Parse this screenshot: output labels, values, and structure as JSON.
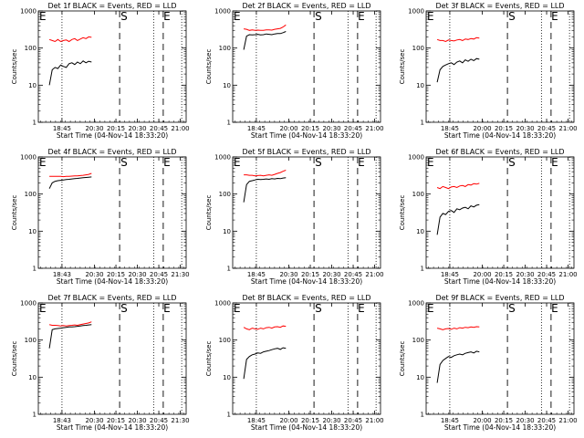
{
  "chart_data": [
    {
      "type": "line",
      "title": "Det 1f BLACK = Events, RED = LLD",
      "xlabel": "Start Time (04-Nov-14 18:33:20)",
      "ylabel": "Counts/sec",
      "yscale": "log",
      "ylim": [
        1,
        1000
      ],
      "yticks": [
        "1",
        "10",
        "100",
        "1000"
      ],
      "xticks": [
        "18:45",
        "20:30",
        "20:15",
        "20:30",
        "20:45",
        "21:00"
      ],
      "markers": [
        "E",
        "S",
        "E"
      ],
      "series": [
        {
          "color": "#ff0000",
          "values": [
            170,
            160,
            150,
            170,
            150,
            160,
            165,
            150,
            170,
            180,
            160,
            175,
            190,
            180,
            200,
            195
          ]
        },
        {
          "color": "#000000",
          "values": [
            10,
            26,
            30,
            28,
            35,
            32,
            30,
            38,
            40,
            36,
            42,
            38,
            45,
            40,
            44,
            42
          ]
        }
      ]
    },
    {
      "type": "line",
      "title": "Det 2f BLACK = Events, RED = LLD",
      "xlabel": "Start Time (04-Nov-14 18:33:20)",
      "ylabel": "Counts/sec",
      "yscale": "log",
      "ylim": [
        1,
        1000
      ],
      "yticks": [
        "1",
        "10",
        "100",
        "1000"
      ],
      "xticks": [
        "18:45",
        "20:00",
        "20:15",
        "20:30",
        "20:45",
        "21:00"
      ],
      "markers": [
        "E",
        "S",
        "E"
      ],
      "series": [
        {
          "color": "#ff0000",
          "values": [
            330,
            320,
            300,
            310,
            300,
            305,
            300,
            300,
            310,
            310,
            305,
            320,
            330,
            340,
            370,
            420
          ]
        },
        {
          "color": "#000000",
          "values": [
            90,
            210,
            230,
            225,
            230,
            235,
            225,
            230,
            240,
            235,
            230,
            240,
            245,
            245,
            260,
            280
          ]
        }
      ]
    },
    {
      "type": "line",
      "title": "Det 3f BLACK = Events, RED = LLD",
      "xlabel": "Start Time (04-Nov-14 18:33:20)",
      "ylabel": "Counts/sec",
      "yscale": "log",
      "ylim": [
        1,
        1000
      ],
      "yticks": [
        "1",
        "10",
        "100",
        "1000"
      ],
      "xticks": [
        "18:45",
        "20:00",
        "20:15",
        "20:30",
        "20:45",
        "21:00"
      ],
      "markers": [
        "E",
        "S",
        "E"
      ],
      "series": [
        {
          "color": "#ff0000",
          "values": [
            170,
            160,
            160,
            150,
            165,
            160,
            155,
            165,
            170,
            160,
            175,
            170,
            180,
            175,
            190,
            185
          ]
        },
        {
          "color": "#000000",
          "values": [
            12,
            26,
            32,
            35,
            38,
            40,
            36,
            42,
            45,
            40,
            48,
            44,
            50,
            46,
            52,
            50
          ]
        }
      ]
    },
    {
      "type": "line",
      "title": "Det 4f BLACK = Events, RED = LLD",
      "xlabel": "Start Time (04-Nov-14 18:33:20)",
      "ylabel": "Counts/sec",
      "yscale": "log",
      "ylim": [
        1,
        1000
      ],
      "yticks": [
        "1",
        "10",
        "100",
        "1000"
      ],
      "xticks": [
        "18:43",
        "20:30",
        "20:15",
        "20:30",
        "20:45",
        "21:30"
      ],
      "markers": [
        "E",
        "S",
        "E"
      ],
      "series": [
        {
          "color": "#ff0000",
          "values": [
            300,
            300,
            300,
            300,
            300,
            295,
            300,
            300,
            305,
            310,
            310,
            315,
            320,
            330,
            340,
            360
          ]
        },
        {
          "color": "#000000",
          "values": [
            140,
            200,
            220,
            230,
            235,
            240,
            245,
            250,
            255,
            260,
            265,
            270,
            275,
            280,
            285,
            290
          ]
        }
      ]
    },
    {
      "type": "line",
      "title": "Det 5f BLACK = Events, RED = LLD",
      "xlabel": "Start Time (04-Nov-14 18:33:20)",
      "ylabel": "Counts/sec",
      "yscale": "log",
      "ylim": [
        1,
        1000
      ],
      "yticks": [
        "1",
        "10",
        "100",
        "1000"
      ],
      "xticks": [
        "18:45",
        "20:30",
        "20:15",
        "20:30",
        "20:45",
        "21:00"
      ],
      "markers": [
        "E",
        "S",
        "E"
      ],
      "series": [
        {
          "color": "#ff0000",
          "values": [
            330,
            330,
            320,
            320,
            310,
            315,
            320,
            310,
            320,
            330,
            320,
            340,
            360,
            380,
            410,
            440
          ]
        },
        {
          "color": "#000000",
          "values": [
            60,
            180,
            220,
            230,
            240,
            250,
            245,
            250,
            255,
            250,
            260,
            255,
            265,
            260,
            270,
            275
          ]
        }
      ]
    },
    {
      "type": "line",
      "title": "Det 6f BLACK = Events, RED = LLD",
      "xlabel": "Start Time (04-Nov-14 18:33:20)",
      "ylabel": "Counts/sec",
      "yscale": "log",
      "ylim": [
        1,
        1000
      ],
      "yticks": [
        "1",
        "10",
        "100",
        "1000"
      ],
      "xticks": [
        "18:45",
        "20:00",
        "20:15",
        "20:30",
        "20:45",
        "21:00"
      ],
      "markers": [
        "E",
        "S",
        "E"
      ],
      "series": [
        {
          "color": "#ff0000",
          "values": [
            150,
            140,
            160,
            150,
            140,
            155,
            160,
            150,
            165,
            170,
            160,
            180,
            175,
            190,
            185,
            195
          ]
        },
        {
          "color": "#000000",
          "values": [
            8,
            24,
            30,
            28,
            34,
            36,
            32,
            40,
            38,
            42,
            44,
            40,
            48,
            45,
            50,
            52
          ]
        }
      ]
    },
    {
      "type": "line",
      "title": "Det 7f BLACK = Events, RED = LLD",
      "xlabel": "Start Time (04-Nov-14 18:33:20)",
      "ylabel": "Counts/sec",
      "yscale": "log",
      "ylim": [
        1,
        1000
      ],
      "yticks": [
        "1",
        "10",
        "100",
        "1000"
      ],
      "xticks": [
        "18:43",
        "20:30",
        "20:15",
        "20:30",
        "20:45",
        "21:30"
      ],
      "markers": [
        "E",
        "S",
        "E"
      ],
      "series": [
        {
          "color": "#ff0000",
          "values": [
            260,
            250,
            250,
            245,
            240,
            245,
            240,
            245,
            250,
            255,
            250,
            260,
            270,
            280,
            290,
            310
          ]
        },
        {
          "color": "#000000",
          "values": [
            60,
            190,
            200,
            205,
            210,
            215,
            220,
            225,
            225,
            230,
            235,
            240,
            245,
            250,
            255,
            260
          ]
        }
      ]
    },
    {
      "type": "line",
      "title": "Det 8f BLACK = Events, RED = LLD",
      "xlabel": "Start Time (04-Nov-14 18:33:20)",
      "ylabel": "Counts/sec",
      "yscale": "log",
      "ylim": [
        1,
        1000
      ],
      "yticks": [
        "1",
        "10",
        "100",
        "1000"
      ],
      "xticks": [
        "18:45",
        "20:00",
        "20:15",
        "20:30",
        "20:45",
        "21:00"
      ],
      "markers": [
        "E",
        "S",
        "E"
      ],
      "series": [
        {
          "color": "#ff0000",
          "values": [
            220,
            200,
            190,
            210,
            200,
            195,
            210,
            200,
            215,
            220,
            210,
            225,
            230,
            220,
            240,
            235
          ]
        },
        {
          "color": "#000000",
          "values": [
            9,
            30,
            36,
            40,
            42,
            45,
            44,
            48,
            50,
            52,
            55,
            58,
            60,
            56,
            62,
            60
          ]
        }
      ]
    },
    {
      "type": "line",
      "title": "Det 9f BLACK = Events, RED = LLD",
      "xlabel": "Start Time (04-Nov-14 18:33:20)",
      "ylabel": "Counts/sec",
      "yscale": "log",
      "ylim": [
        1,
        1000
      ],
      "yticks": [
        "1",
        "10",
        "100",
        "1000"
      ],
      "xticks": [
        "18:45",
        "20:00",
        "20:15",
        "20:30",
        "20:45",
        "21:00"
      ],
      "markers": [
        "E",
        "S",
        "E"
      ],
      "series": [
        {
          "color": "#ff0000",
          "values": [
            210,
            200,
            190,
            200,
            205,
            195,
            210,
            200,
            215,
            210,
            220,
            215,
            225,
            220,
            230,
            225
          ]
        },
        {
          "color": "#000000",
          "values": [
            7,
            22,
            28,
            32,
            36,
            34,
            38,
            40,
            42,
            40,
            44,
            46,
            48,
            45,
            50,
            48
          ]
        }
      ]
    }
  ]
}
